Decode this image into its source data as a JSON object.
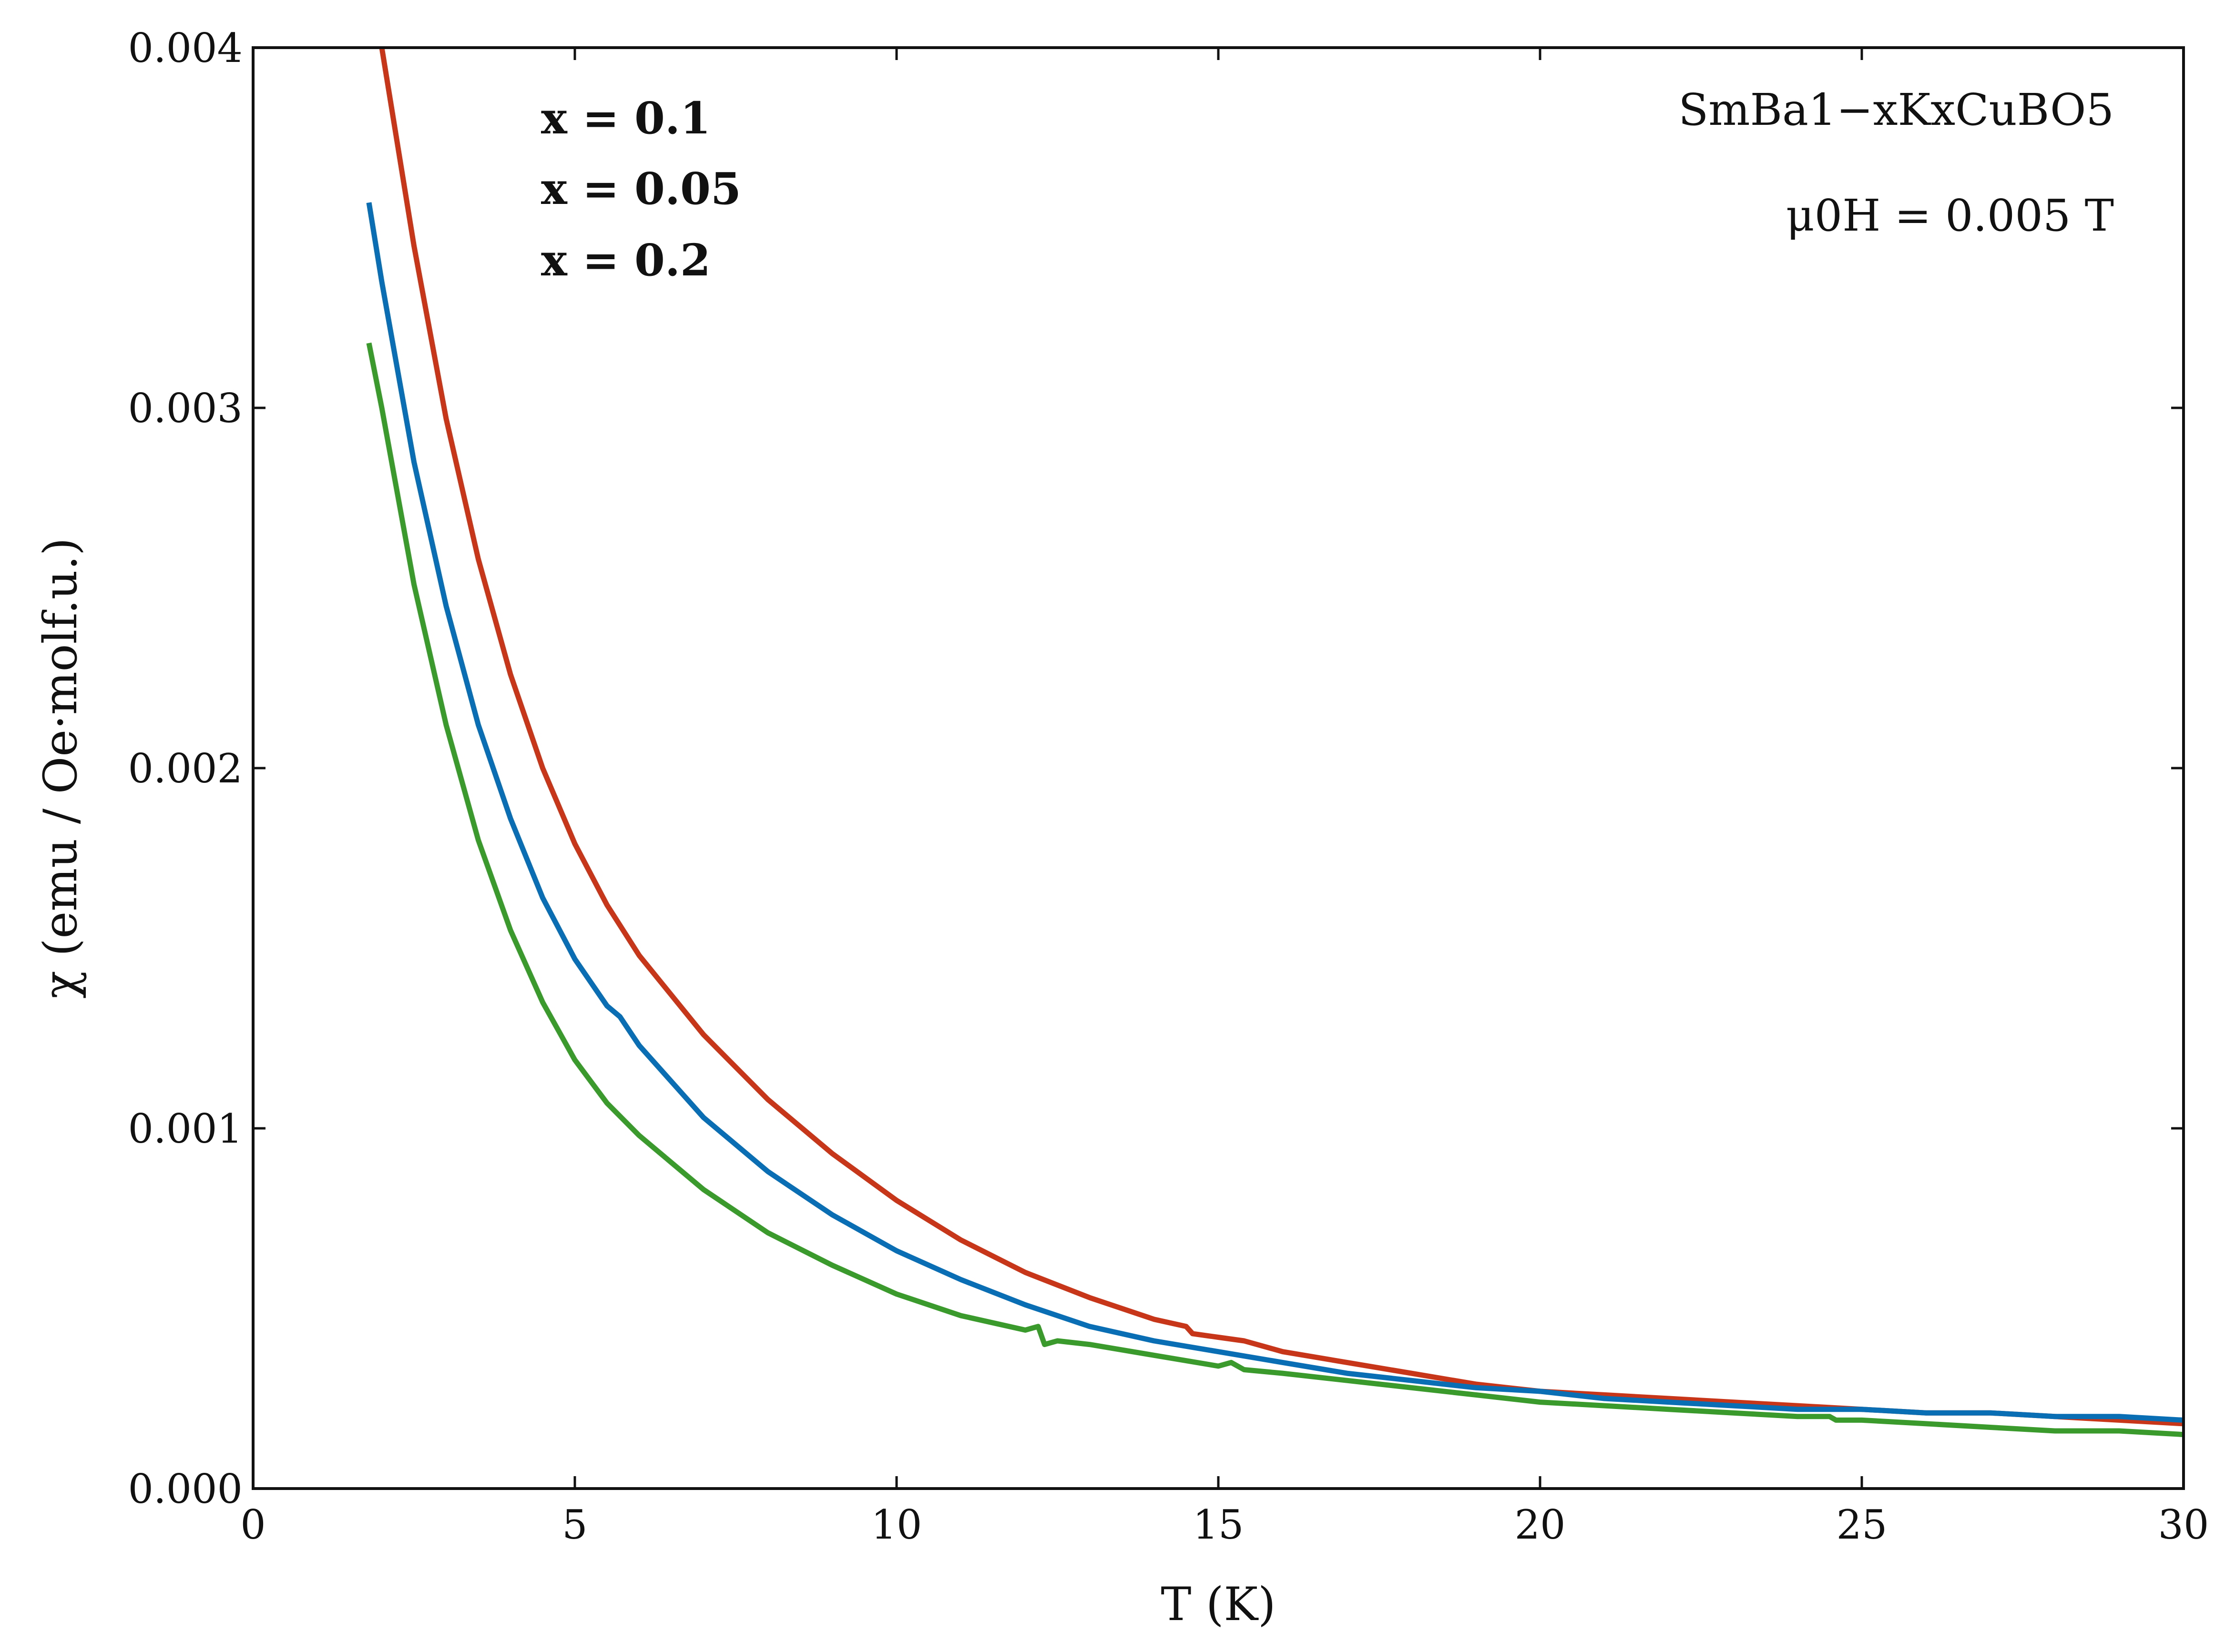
{
  "chart_data": {
    "type": "line",
    "xlabel": "T (K)",
    "ylabel": "χ (emu / Oe·molf.u.)",
    "xlim": [
      0,
      30
    ],
    "ylim": [
      0,
      0.004
    ],
    "xticks": [
      0,
      5,
      10,
      15,
      20,
      25,
      30
    ],
    "yticks": [
      0.0,
      0.001,
      0.002,
      0.003,
      0.004
    ],
    "xtick_labels": [
      "0",
      "5",
      "10",
      "15",
      "20",
      "25",
      "30"
    ],
    "ytick_labels": [
      "0.000",
      "0.001",
      "0.002",
      "0.003",
      "0.004"
    ],
    "grid": false,
    "legend_placement": "top-left",
    "annotations": {
      "compound": "SmBa1−xKxCuBO5",
      "field": "μ0H = 0.005 T"
    },
    "series": [
      {
        "name": "x = 0.1",
        "color": "#c8361a",
        "x": [
          2.0,
          2.5,
          3.0,
          3.5,
          4.0,
          4.5,
          5.0,
          5.5,
          6.0,
          7.0,
          8.0,
          9.0,
          10.0,
          11.0,
          12.0,
          13.0,
          14.0,
          14.5,
          14.6,
          15.0,
          15.4,
          16.0,
          17.0,
          18.0,
          19.0,
          20.0,
          21.0,
          22.0,
          23.0,
          24.0,
          25.0,
          26.0,
          27.0,
          28.0,
          29.0,
          30.0
        ],
        "y": [
          0.004,
          0.00345,
          0.00297,
          0.00258,
          0.00226,
          0.002,
          0.00179,
          0.00162,
          0.00148,
          0.00126,
          0.00108,
          0.00093,
          0.0008,
          0.00069,
          0.0006,
          0.00053,
          0.00047,
          0.00045,
          0.00043,
          0.00042,
          0.00041,
          0.00038,
          0.00035,
          0.00032,
          0.00029,
          0.00027,
          0.00026,
          0.00025,
          0.00024,
          0.00023,
          0.00022,
          0.00021,
          0.00021,
          0.0002,
          0.00019,
          0.00018
        ]
      },
      {
        "name": "x = 0.05",
        "color": "#0a6eb4",
        "x": [
          1.8,
          2.0,
          2.5,
          3.0,
          3.5,
          4.0,
          4.5,
          5.0,
          5.5,
          5.7,
          6.0,
          7.0,
          8.0,
          9.0,
          10.0,
          11.0,
          12.0,
          13.0,
          14.0,
          15.0,
          16.0,
          17.0,
          18.0,
          19.0,
          20.0,
          21.0,
          22.0,
          23.0,
          24.0,
          25.0,
          26.0,
          27.0,
          28.0,
          29.0,
          30.0
        ],
        "y": [
          0.00357,
          0.00335,
          0.00285,
          0.00245,
          0.00212,
          0.00186,
          0.00164,
          0.00147,
          0.00134,
          0.00131,
          0.00123,
          0.00103,
          0.00088,
          0.00076,
          0.00066,
          0.00058,
          0.00051,
          0.00045,
          0.00041,
          0.00038,
          0.00035,
          0.00032,
          0.0003,
          0.00028,
          0.00027,
          0.00025,
          0.00024,
          0.00023,
          0.00022,
          0.00022,
          0.00021,
          0.00021,
          0.0002,
          0.0002,
          0.00019
        ]
      },
      {
        "name": "x = 0.2",
        "color": "#3a9a2c",
        "x": [
          1.8,
          2.0,
          2.5,
          3.0,
          3.5,
          4.0,
          4.5,
          5.0,
          5.5,
          6.0,
          7.0,
          8.0,
          9.0,
          10.0,
          11.0,
          12.0,
          12.2,
          12.3,
          12.5,
          13.0,
          14.0,
          15.0,
          15.2,
          15.4,
          16.0,
          17.0,
          18.0,
          19.0,
          20.0,
          21.0,
          22.0,
          23.0,
          24.0,
          24.5,
          24.6,
          25.0,
          26.0,
          27.0,
          28.0,
          29.0,
          30.0
        ],
        "y": [
          0.00318,
          0.003,
          0.00251,
          0.00212,
          0.0018,
          0.00155,
          0.00135,
          0.00119,
          0.00107,
          0.00098,
          0.00083,
          0.00071,
          0.00062,
          0.00054,
          0.00048,
          0.00044,
          0.00045,
          0.0004,
          0.00041,
          0.0004,
          0.00037,
          0.00034,
          0.00035,
          0.00033,
          0.00032,
          0.0003,
          0.00028,
          0.00026,
          0.00024,
          0.00023,
          0.00022,
          0.00021,
          0.0002,
          0.0002,
          0.00019,
          0.00019,
          0.00018,
          0.00017,
          0.00016,
          0.00016,
          0.00015
        ]
      }
    ]
  }
}
